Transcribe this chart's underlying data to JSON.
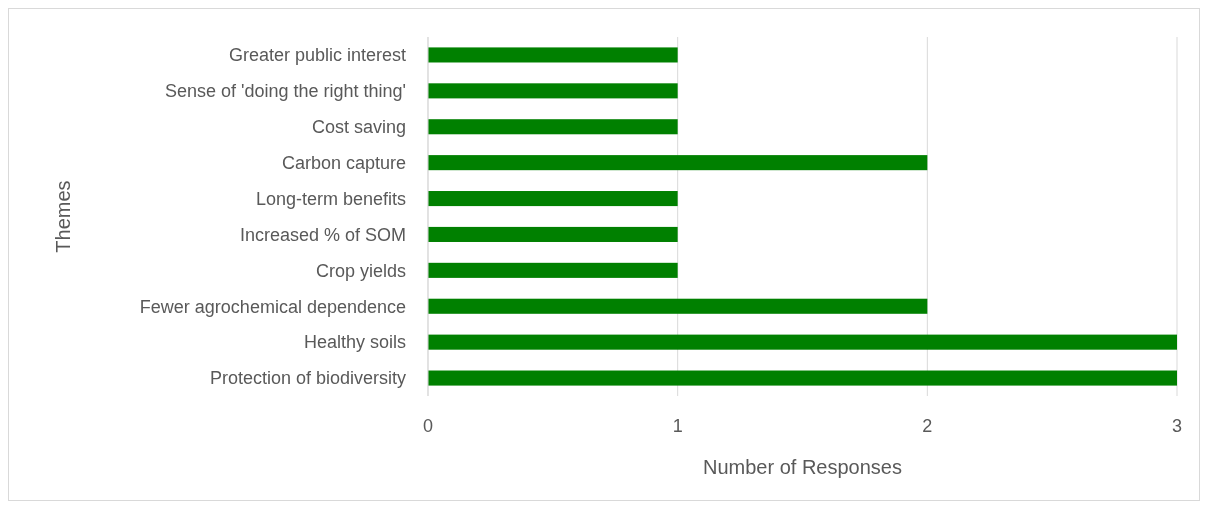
{
  "chart_data": {
    "type": "bar",
    "orientation": "horizontal",
    "xlabel": "Number of Responses",
    "ylabel": "Themes",
    "categories": [
      "Greater public interest",
      "Sense of 'doing the right thing'",
      "Cost saving",
      "Carbon capture",
      "Long-term benefits",
      "Increased % of SOM",
      "Crop yields",
      "Fewer agrochemical dependence",
      "Healthy soils",
      "Protection of biodiversity"
    ],
    "values": [
      1,
      1,
      1,
      2,
      1,
      1,
      1,
      2,
      3,
      3
    ],
    "color": "#008000",
    "xlim": [
      0,
      3
    ],
    "xticks": [
      0,
      1,
      2,
      3
    ],
    "grid": "x"
  }
}
